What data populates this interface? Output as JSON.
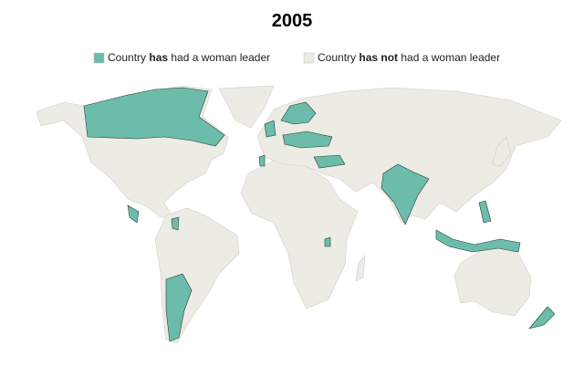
{
  "title": "2005",
  "legend": [
    {
      "parts": [
        "Country ",
        "has",
        " had a woman leader"
      ],
      "color": "#6cbcab"
    },
    {
      "parts": [
        "Country ",
        "has not",
        " had a woman leader"
      ],
      "color": "#ecebe4"
    }
  ]
}
